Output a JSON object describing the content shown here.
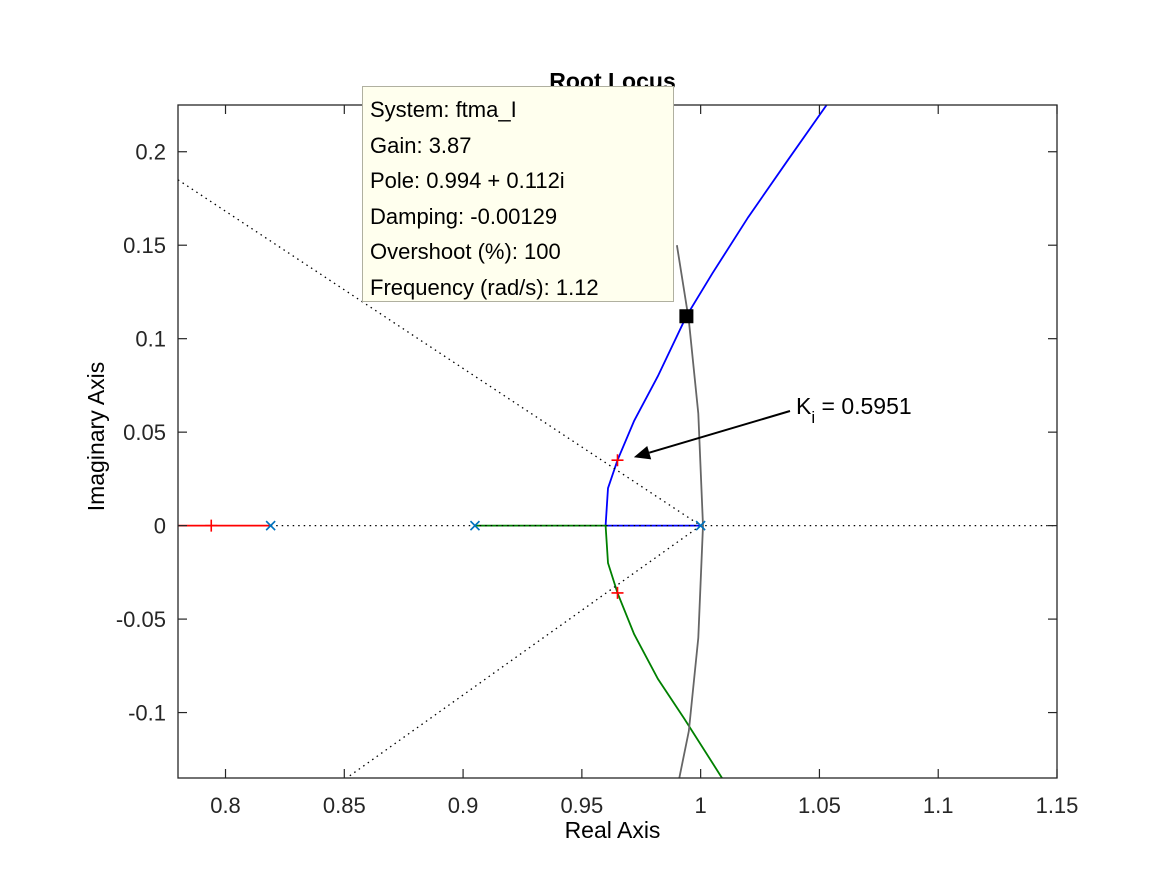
{
  "chart_data": {
    "type": "line",
    "title": "Root Locus",
    "xlabel": "Real Axis",
    "ylabel": "Imaginary Axis",
    "xlim": [
      0.78,
      1.15
    ],
    "ylim": [
      -0.135,
      0.225
    ],
    "xticks": [
      "0.8",
      "0.85",
      "0.9",
      "0.95",
      "1",
      "1.05",
      "1.1",
      "1.15"
    ],
    "yticks": [
      "-0.1",
      "-0.05",
      "0",
      "0.05",
      "0.1",
      "0.15",
      "0.2"
    ],
    "xtick_values": [
      0.8,
      0.85,
      0.9,
      0.95,
      1.0,
      1.05,
      1.1,
      1.15
    ],
    "ytick_values": [
      -0.1,
      -0.05,
      0,
      0.05,
      0.1,
      0.15,
      0.2
    ],
    "grid": false,
    "colors": {
      "blue": "#0000ff",
      "green": "#008000",
      "red": "#ff0000",
      "gray": "#666666",
      "pole": "#0072bd",
      "marker_red": "#ff0000"
    },
    "series": [
      {
        "color": "#0000ff",
        "style": "solid",
        "points": [
          [
            1.0,
            0.0
          ],
          [
            0.96,
            0.0
          ],
          [
            0.961,
            0.02
          ],
          [
            0.965,
            0.035
          ],
          [
            0.972,
            0.056
          ],
          [
            0.982,
            0.08
          ],
          [
            0.994,
            0.112
          ],
          [
            1.005,
            0.135
          ],
          [
            1.02,
            0.165
          ],
          [
            1.037,
            0.196
          ],
          [
            1.053,
            0.225
          ]
        ]
      },
      {
        "color": "#008000",
        "style": "solid",
        "points": [
          [
            0.905,
            0.0
          ],
          [
            0.96,
            0.0
          ],
          [
            0.961,
            -0.02
          ],
          [
            0.965,
            -0.036
          ],
          [
            0.972,
            -0.058
          ],
          [
            0.982,
            -0.082
          ],
          [
            0.993,
            -0.103
          ],
          [
            1.005,
            -0.127
          ],
          [
            1.009,
            -0.135
          ]
        ]
      },
      {
        "color": "#ff0000",
        "style": "solid",
        "points": [
          [
            0.78,
            0.0
          ],
          [
            0.819,
            0.0
          ]
        ]
      },
      {
        "color": "#666666",
        "style": "solid",
        "points": [
          [
            0.99,
            0.15
          ],
          [
            0.995,
            0.11
          ],
          [
            0.999,
            0.06
          ],
          [
            1.001,
            0.0
          ],
          [
            0.999,
            -0.06
          ],
          [
            0.995,
            -0.11
          ],
          [
            0.991,
            -0.135
          ]
        ]
      },
      {
        "color": "#000000",
        "style": "dotted",
        "points": [
          [
            0.78,
            0.185
          ],
          [
            1.0,
            0.0
          ],
          [
            0.851,
            -0.135
          ]
        ]
      },
      {
        "color": "#000000",
        "style": "dotted",
        "points": [
          [
            0.819,
            0.0
          ],
          [
            1.15,
            0.0
          ]
        ]
      }
    ],
    "poles": [
      [
        0.819,
        0.0
      ],
      [
        0.905,
        0.0
      ],
      [
        1.0,
        0.0
      ]
    ],
    "gain_markers": [
      [
        0.794,
        0.0
      ],
      [
        0.965,
        0.035
      ],
      [
        0.965,
        -0.036
      ]
    ],
    "selected_point": [
      0.994,
      0.112
    ],
    "datatip": {
      "lines": [
        "System: ftma_I",
        "Gain: 3.87",
        "Pole: 0.994 + 0.112i",
        "Damping: -0.00129",
        "Overshoot (%): 100",
        "Frequency (rad/s): 1.12"
      ]
    },
    "annotation": {
      "symbol": "K",
      "subscript": "i",
      "text": " = 0.5951",
      "target": [
        0.966,
        0.035
      ]
    }
  }
}
